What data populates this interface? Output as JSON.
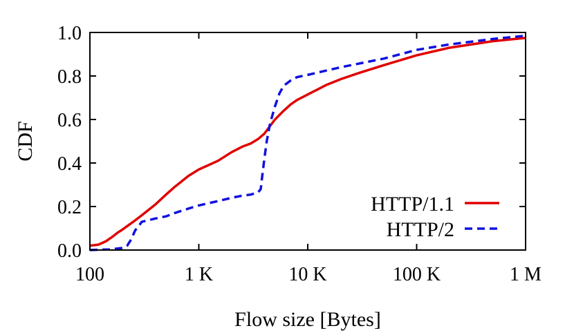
{
  "chart_data": {
    "type": "line",
    "title": "",
    "xlabel": "Flow size [Bytes]",
    "ylabel": "CDF",
    "xscale": "log",
    "xlim": [
      100,
      1000000
    ],
    "ylim": [
      0.0,
      1.0
    ],
    "grid": false,
    "legend_position": "bottom-right",
    "x_ticks": [
      {
        "value": 100,
        "label": "100"
      },
      {
        "value": 1000,
        "label": "1 K"
      },
      {
        "value": 10000,
        "label": "10 K"
      },
      {
        "value": 100000,
        "label": "100 K"
      },
      {
        "value": 1000000,
        "label": "1 M"
      }
    ],
    "y_ticks": [
      {
        "value": 0.0,
        "label": "0.0"
      },
      {
        "value": 0.2,
        "label": "0.2"
      },
      {
        "value": 0.4,
        "label": "0.4"
      },
      {
        "value": 0.6,
        "label": "0.6"
      },
      {
        "value": 0.8,
        "label": "0.8"
      },
      {
        "value": 1.0,
        "label": "1.0"
      }
    ],
    "series": [
      {
        "name": "HTTP/1.1",
        "color": "#e00000",
        "dash": "solid",
        "points": [
          [
            100,
            0.02
          ],
          [
            120,
            0.025
          ],
          [
            140,
            0.04
          ],
          [
            160,
            0.06
          ],
          [
            180,
            0.08
          ],
          [
            200,
            0.095
          ],
          [
            250,
            0.13
          ],
          [
            300,
            0.16
          ],
          [
            400,
            0.21
          ],
          [
            500,
            0.255
          ],
          [
            600,
            0.29
          ],
          [
            800,
            0.34
          ],
          [
            1000,
            0.37
          ],
          [
            1500,
            0.41
          ],
          [
            2000,
            0.45
          ],
          [
            2500,
            0.475
          ],
          [
            3000,
            0.49
          ],
          [
            3500,
            0.51
          ],
          [
            4000,
            0.535
          ],
          [
            4500,
            0.57
          ],
          [
            5000,
            0.6
          ],
          [
            6000,
            0.64
          ],
          [
            7000,
            0.67
          ],
          [
            8000,
            0.69
          ],
          [
            10000,
            0.715
          ],
          [
            15000,
            0.76
          ],
          [
            20000,
            0.785
          ],
          [
            30000,
            0.815
          ],
          [
            50000,
            0.85
          ],
          [
            100000,
            0.895
          ],
          [
            200000,
            0.93
          ],
          [
            500000,
            0.96
          ],
          [
            1000000,
            0.975
          ]
        ]
      },
      {
        "name": "HTTP/2",
        "color": "#1010e0",
        "dash": "dashed",
        "points": [
          [
            100,
            0.0
          ],
          [
            150,
            0.003
          ],
          [
            200,
            0.01
          ],
          [
            220,
            0.02
          ],
          [
            240,
            0.05
          ],
          [
            260,
            0.09
          ],
          [
            280,
            0.11
          ],
          [
            300,
            0.13
          ],
          [
            400,
            0.145
          ],
          [
            500,
            0.155
          ],
          [
            600,
            0.17
          ],
          [
            800,
            0.19
          ],
          [
            1000,
            0.205
          ],
          [
            1500,
            0.225
          ],
          [
            2000,
            0.24
          ],
          [
            2500,
            0.25
          ],
          [
            3000,
            0.255
          ],
          [
            3500,
            0.265
          ],
          [
            3700,
            0.28
          ],
          [
            3800,
            0.33
          ],
          [
            4000,
            0.42
          ],
          [
            4200,
            0.5
          ],
          [
            4500,
            0.58
          ],
          [
            5000,
            0.66
          ],
          [
            5500,
            0.72
          ],
          [
            6000,
            0.755
          ],
          [
            7000,
            0.78
          ],
          [
            8000,
            0.795
          ],
          [
            10000,
            0.805
          ],
          [
            20000,
            0.84
          ],
          [
            50000,
            0.88
          ],
          [
            100000,
            0.92
          ],
          [
            200000,
            0.945
          ],
          [
            500000,
            0.97
          ],
          [
            1000000,
            0.985
          ]
        ]
      }
    ]
  }
}
